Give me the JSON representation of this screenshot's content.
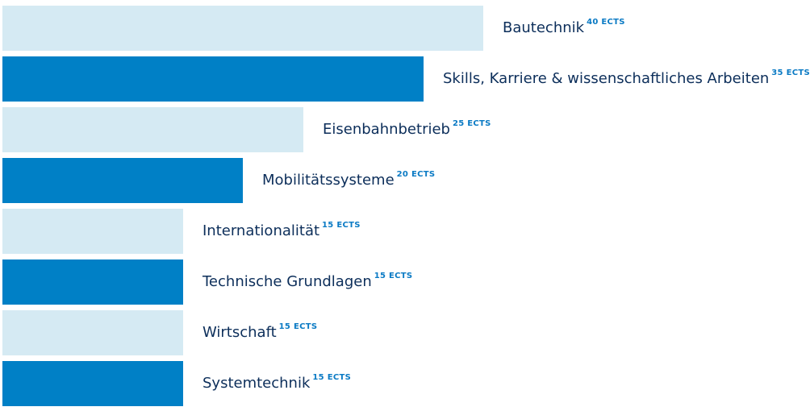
{
  "colors": {
    "bar_light": "#d5eaf3",
    "bar_dark": "#0080c6",
    "label_text": "#0c2e5a",
    "unit_text": "#0a7ac4"
  },
  "chart_data": {
    "type": "bar",
    "orientation": "horizontal",
    "unit": "ECTS",
    "xlim": [
      0,
      40
    ],
    "grid": false,
    "categories": [
      "Bautechnik",
      "Skills, Karriere & wissenschaftliches Arbeiten",
      "Eisenbahnbetrieb",
      "Mobilitätssysteme",
      "Internationalität",
      "Technische Grundlagen",
      "Wirtschaft",
      "Systemtechnik"
    ],
    "values": [
      40,
      35,
      25,
      20,
      15,
      15,
      15,
      15
    ],
    "value_labels": [
      "40 ECTS",
      "35 ECTS",
      "25 ECTS",
      "20 ECTS",
      "15 ECTS",
      "15 ECTS",
      "15 ECTS",
      "15 ECTS"
    ],
    "bar_colors": [
      "light",
      "dark",
      "light",
      "dark",
      "light",
      "dark",
      "light",
      "dark"
    ]
  }
}
